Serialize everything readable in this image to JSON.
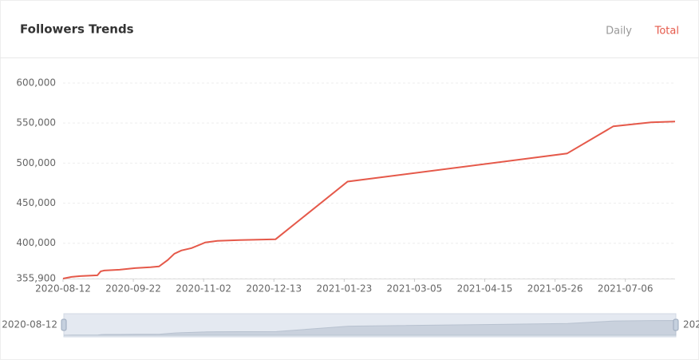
{
  "header": {
    "title": "Followers Trends",
    "tabs": [
      "Daily",
      "Total"
    ],
    "active_tab": 1
  },
  "chart_data": {
    "type": "line",
    "x": [
      "2020-08-12",
      "2020-08-17",
      "2020-08-22",
      "2020-09-01",
      "2020-09-03",
      "2020-09-05",
      "2020-09-14",
      "2020-09-23",
      "2020-10-02",
      "2020-10-07",
      "2020-10-12",
      "2020-10-16",
      "2020-10-20",
      "2020-10-26",
      "2020-11-03",
      "2020-11-10",
      "2020-11-23",
      "2020-12-14",
      "2021-01-25",
      "2021-06-02",
      "2021-06-29",
      "2021-07-21",
      "2021-08-04"
    ],
    "series": [
      {
        "name": "Total",
        "color": "#e5594a",
        "values": [
          355900,
          358000,
          359000,
          360000,
          365000,
          366000,
          367000,
          369000,
          370000,
          371000,
          379000,
          387000,
          391000,
          394000,
          401000,
          403000,
          404000,
          405000,
          477000,
          512000,
          546000,
          551000,
          552000
        ]
      }
    ],
    "xlim": [
      "2020-08-12",
      "2021-08-04"
    ],
    "xticks": [
      "2020-08-12",
      "2020-09-22",
      "2020-11-02",
      "2020-12-13",
      "2021-01-23",
      "2021-03-05",
      "2021-04-15",
      "2021-05-26",
      "2021-07-06"
    ],
    "ylim": [
      355900,
      600000
    ],
    "yticks": [
      {
        "value": 355900,
        "label": "355,900"
      },
      {
        "value": 400000,
        "label": "400,000"
      },
      {
        "value": 450000,
        "label": "450,000"
      },
      {
        "value": 500000,
        "label": "500,000"
      },
      {
        "value": 550000,
        "label": "550,000"
      },
      {
        "value": 600000,
        "label": "600,000"
      }
    ],
    "grid": true
  }
}
